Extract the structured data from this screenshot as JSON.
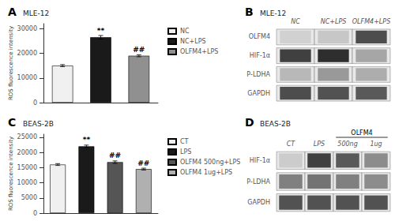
{
  "chart_data": [
    {
      "type": "bar",
      "title": "A",
      "subtitle": "MLE-12",
      "categories": [
        "NC",
        "NC+LPS",
        "OLFM4+LPS"
      ],
      "values": [
        15000,
        26500,
        19000
      ],
      "errors": [
        400,
        700,
        400
      ],
      "colors": [
        "#f0f0f0",
        "#1a1a1a",
        "#909090"
      ],
      "ylabel": "ROS fluorescence intensity",
      "ylim": [
        0,
        32000
      ],
      "yticks": [
        0,
        10000,
        20000,
        30000
      ],
      "tick_labels": "y",
      "grid": false,
      "legend": "upper right",
      "annotations": [
        {
          "category": "NC+LPS",
          "text": "**"
        },
        {
          "category": "OLFM4+LPS",
          "text": "##"
        }
      ]
    },
    {
      "type": "heatmap",
      "title": "B",
      "subtitle": "MLE-12",
      "categories": [
        "NC",
        "NC+LPS",
        "OLFM4+LPS"
      ],
      "rows": [
        "OLFM4",
        "HIF-1α",
        "P-LDHA",
        "GAPDH"
      ],
      "cells": [
        [
          0.82,
          0.78,
          0.3
        ],
        [
          0.25,
          0.18,
          0.65
        ],
        [
          0.72,
          0.6,
          0.68
        ],
        [
          0.3,
          0.32,
          0.35
        ]
      ]
    },
    {
      "type": "bar",
      "title": "C",
      "subtitle": "BEAS-2B",
      "categories": [
        "CT",
        "LPS",
        "OLFM4 500ng+LPS",
        "OLFM4 1ug+LPS"
      ],
      "values": [
        16000,
        22000,
        16800,
        14500
      ],
      "errors": [
        300,
        400,
        400,
        300
      ],
      "colors": [
        "#f0f0f0",
        "#1a1a1a",
        "#555555",
        "#b0b0b0"
      ],
      "ylabel": "ROS fluorescence intensity",
      "ylim": [
        0,
        26000
      ],
      "yticks": [
        0,
        5000,
        10000,
        15000,
        20000,
        25000
      ],
      "tick_labels": "y",
      "grid": false,
      "legend": "upper right",
      "annotations": [
        {
          "category": "LPS",
          "text": "**"
        },
        {
          "category": "OLFM4 500ng+LPS",
          "text": "##"
        },
        {
          "category": "OLFM4 1ug+LPS",
          "text": "##"
        }
      ]
    },
    {
      "type": "heatmap",
      "title": "D",
      "subtitle": "BEAS-2B",
      "categories": [
        "CT",
        "LPS",
        "500ng",
        "1ug"
      ],
      "rows": [
        "HIF-1α",
        "P-LDHA",
        "GAPDH"
      ],
      "cells": [
        [
          0.8,
          0.25,
          0.35,
          0.55
        ],
        [
          0.5,
          0.45,
          0.5,
          0.55
        ],
        [
          0.32,
          0.32,
          0.32,
          0.32
        ]
      ],
      "annotations": [
        {
          "text": "OLFM4",
          "categories": [
            "500ng",
            "1ug"
          ]
        }
      ]
    }
  ]
}
